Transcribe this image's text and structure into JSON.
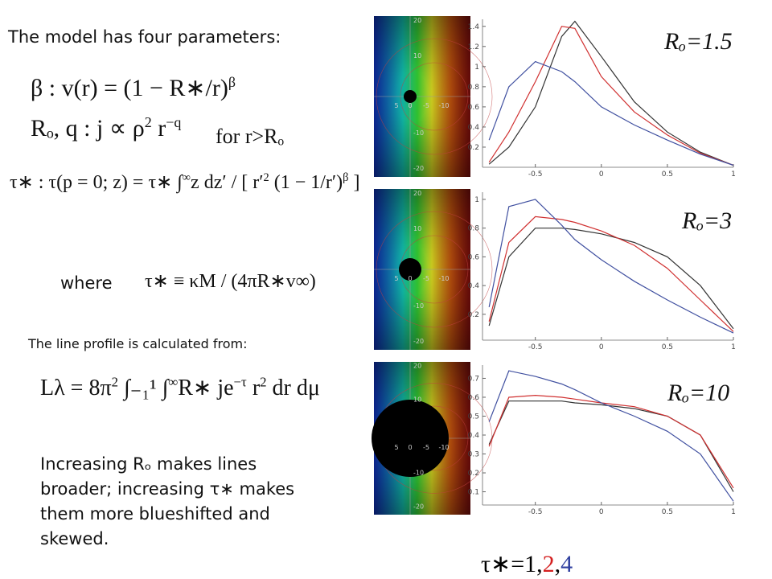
{
  "intro": "The model has four parameters:",
  "equations": [
    [
      "β : v(r) = (1 − R∗/r)",
      "β"
    ],
    [
      "Rₒ, q : j ∝ ρ",
      "2",
      " r",
      "−q"
    ],
    [
      "τ∗ : τ(p = 0; z) = τ∗ ∫",
      "∞",
      "z dz′ / [ r′",
      "2",
      " (1 − 1/r′)",
      "β",
      " ]"
    ]
  ],
  "for_label": "for r>Rₒ",
  "where": "where",
  "tau_definition": [
    "τ∗ ≡ κM / (4πR∗v∞)"
  ],
  "profile_intro": "The line profile is calculated from:",
  "profile_equation": [
    "Lλ = 8π",
    "2",
    " ∫₋₁¹ ∫",
    "∞",
    "R∗ je",
    "−τ",
    " r",
    "2",
    " dr dμ"
  ],
  "conclusion": "Increasing Rₒ makes lines broader; increasing τ∗ makes them more blueshifted and skewed.",
  "map_axis": {
    "x": [
      "5",
      "0",
      "-5",
      "-10"
    ],
    "y": [
      "20",
      "10",
      "-10",
      "-20"
    ]
  },
  "panel_labels": [
    "Rₒ=1.5",
    "Rₒ=3",
    "Rₒ=10"
  ],
  "tau_note": {
    "parts": [
      "τ∗=",
      "1",
      ",",
      "2",
      ",",
      "4"
    ],
    "colors": [
      "#000000",
      "#000000",
      "#000000",
      "#d42020",
      "#000000",
      "#3040a0"
    ]
  },
  "chart_data": [
    {
      "type": "line",
      "x": [
        -0.85,
        -0.7,
        -0.5,
        -0.3,
        -0.2,
        0,
        0.25,
        0.5,
        0.75,
        1
      ],
      "series": [
        {
          "color": "#333333",
          "values": [
            0.03,
            0.2,
            0.6,
            1.3,
            1.45,
            1.1,
            0.65,
            0.35,
            0.15,
            0.02
          ]
        },
        {
          "color": "#d03030",
          "values": [
            0.05,
            0.35,
            0.85,
            1.4,
            1.38,
            0.9,
            0.55,
            0.32,
            0.14,
            0.02
          ]
        },
        {
          "color": "#4050a0",
          "values": [
            0.27,
            0.8,
            1.05,
            0.95,
            0.85,
            0.6,
            0.42,
            0.27,
            0.13,
            0.02
          ]
        }
      ],
      "xlim": [
        -0.9,
        1
      ],
      "xticks": [
        -0.5,
        0,
        0.5,
        1
      ],
      "ylim": [
        0,
        1.47
      ],
      "yticks": [
        0.2,
        0.4,
        0.6,
        0.8,
        1,
        1.2,
        1.4
      ]
    },
    {
      "type": "line",
      "x": [
        -0.85,
        -0.7,
        -0.5,
        -0.3,
        -0.2,
        0,
        0.25,
        0.5,
        0.75,
        1
      ],
      "series": [
        {
          "color": "#333333",
          "values": [
            0.12,
            0.6,
            0.8,
            0.8,
            0.79,
            0.76,
            0.7,
            0.6,
            0.4,
            0.1
          ]
        },
        {
          "color": "#d03030",
          "values": [
            0.15,
            0.7,
            0.88,
            0.86,
            0.84,
            0.78,
            0.68,
            0.52,
            0.3,
            0.08
          ]
        },
        {
          "color": "#4050a0",
          "values": [
            0.25,
            0.95,
            1.0,
            0.82,
            0.72,
            0.58,
            0.43,
            0.3,
            0.18,
            0.07
          ]
        }
      ],
      "xlim": [
        -0.9,
        1
      ],
      "xticks": [
        -0.5,
        0,
        0.5,
        1
      ],
      "ylim": [
        0.02,
        1.05
      ],
      "yticks": [
        0.2,
        0.4,
        0.6,
        0.8,
        1
      ]
    },
    {
      "type": "line",
      "x": [
        -0.85,
        -0.7,
        -0.5,
        -0.3,
        -0.2,
        0,
        0.25,
        0.5,
        0.75,
        1
      ],
      "series": [
        {
          "color": "#333333",
          "values": [
            0.35,
            0.58,
            0.58,
            0.58,
            0.57,
            0.56,
            0.54,
            0.5,
            0.4,
            0.1
          ]
        },
        {
          "color": "#d03030",
          "values": [
            0.34,
            0.6,
            0.61,
            0.6,
            0.59,
            0.57,
            0.55,
            0.5,
            0.4,
            0.12
          ]
        },
        {
          "color": "#4050a0",
          "values": [
            0.47,
            0.74,
            0.71,
            0.67,
            0.64,
            0.57,
            0.5,
            0.42,
            0.3,
            0.05
          ]
        }
      ],
      "xlim": [
        -0.9,
        1
      ],
      "xticks": [
        -0.5,
        0,
        0.5,
        1
      ],
      "ylim": [
        0.03,
        0.77
      ],
      "yticks": [
        0.1,
        0.2,
        0.3,
        0.4,
        0.5,
        0.6,
        0.7
      ]
    }
  ]
}
